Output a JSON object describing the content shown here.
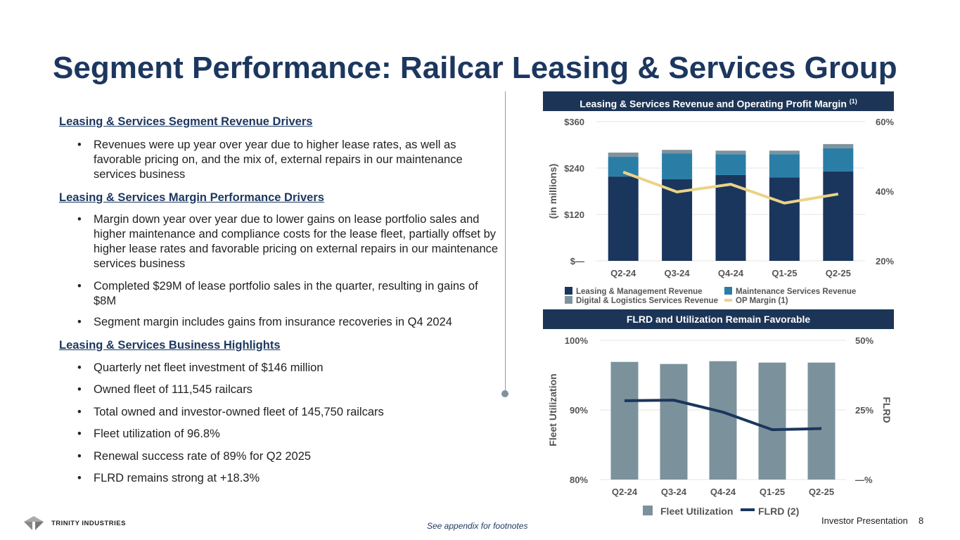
{
  "title": "Segment Performance: Railcar Leasing & Services Group",
  "sections": [
    {
      "heading": "Leasing & Services Segment Revenue Drivers",
      "bullets": [
        "Revenues were up year over year due to higher lease rates, as well as favorable pricing on, and the mix of, external repairs in our maintenance services business"
      ]
    },
    {
      "heading": "Leasing & Services Margin Performance Drivers",
      "bullets": [
        "Margin down year over year due to lower gains on lease portfolio sales and higher maintenance and compliance costs for the lease fleet, partially offset by higher lease rates and favorable pricing on external repairs in our maintenance services business",
        "Completed $29M of lease portfolio sales in the quarter, resulting in gains of $8M",
        "Segment margin includes gains from insurance recoveries in Q4 2024"
      ]
    },
    {
      "heading": "Leasing & Services Business Highlights",
      "bullets": [
        "Quarterly net fleet investment of $146 million",
        "Owned fleet of 111,545 railcars",
        "Total owned and investor-owned fleet of 145,750 railcars",
        "Fleet utilization of 96.8%",
        "Renewal success rate of 89% for Q2 2025",
        "FLRD remains strong at +18.3%"
      ]
    }
  ],
  "bullet_char": "•",
  "chart_data": [
    {
      "type": "bar",
      "title": "Leasing & Services Revenue and Operating Profit Margin",
      "title_sup": "(1)",
      "stacked": true,
      "categories": [
        "Q2-24",
        "Q3-24",
        "Q4-24",
        "Q1-25",
        "Q2-25"
      ],
      "ylabel": "(in millions)",
      "ylim": [
        0,
        360
      ],
      "yticks": [
        "$—",
        "$120",
        "$240",
        "$360"
      ],
      "y2lim": [
        20,
        60
      ],
      "y2ticks": [
        "20%",
        "40%",
        "60%"
      ],
      "series": [
        {
          "name": "Leasing & Management Revenue",
          "values": [
            218,
            211,
            222,
            216,
            231
          ],
          "color": "#1b365d"
        },
        {
          "name": "Maintenance Services Revenue",
          "values": [
            51,
            67,
            54,
            60,
            60
          ],
          "color": "#2a7ea6"
        },
        {
          "name": "Digital & Logistics Services Revenue",
          "values": [
            11,
            9,
            9,
            9,
            11
          ],
          "color": "#7f939e"
        },
        {
          "name": "OP Margin (1)",
          "type": "line",
          "axis": "right",
          "values": [
            45.5,
            39.8,
            42.0,
            36.6,
            39.2
          ],
          "color": "#ebd386"
        }
      ],
      "grid": true,
      "legend": "bottom"
    },
    {
      "type": "bar",
      "title": "FLRD and Utilization Remain Favorable",
      "categories": [
        "Q2-24",
        "Q3-24",
        "Q4-24",
        "Q1-25",
        "Q2-25"
      ],
      "ylabel": "Fleet Utilization",
      "ylim": [
        80,
        100
      ],
      "yticks": [
        "80%",
        "90%",
        "100%"
      ],
      "y2label": "FLRD",
      "y2lim": [
        0,
        50
      ],
      "y2ticks": [
        "—%",
        "25%",
        "50%"
      ],
      "series": [
        {
          "name": "Fleet Utilization",
          "values": [
            96.9,
            96.6,
            97.0,
            96.8,
            96.8
          ],
          "color": "#7b929c"
        },
        {
          "name": "FLRD (2)",
          "type": "line",
          "axis": "right",
          "values": [
            28.3,
            28.5,
            24.2,
            17.9,
            18.3
          ],
          "color": "#1b365d"
        }
      ],
      "grid": true,
      "legend": "bottom"
    }
  ],
  "footer": {
    "footnote": "See appendix for footnotes",
    "label": "Investor Presentation",
    "page": "8",
    "logo_text": "TRINITY INDUSTRIES"
  }
}
